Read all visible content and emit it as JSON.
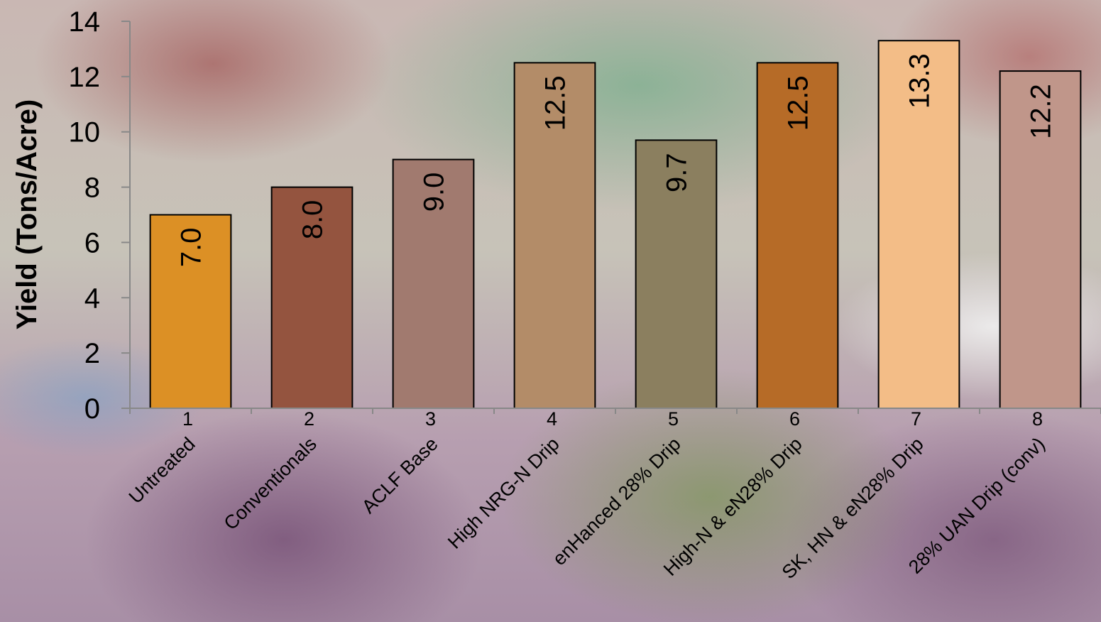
{
  "chart_data": {
    "type": "bar",
    "title": "",
    "xlabel": "",
    "ylabel": "Yield (Tons/Acre)",
    "ylim": [
      0,
      14
    ],
    "yticks": [
      0,
      2,
      4,
      6,
      8,
      10,
      12,
      14
    ],
    "grid": false,
    "categories": [
      "1",
      "2",
      "3",
      "4",
      "5",
      "6",
      "7",
      "8"
    ],
    "category_labels": [
      "Untreated",
      "Conventionals",
      "ACLF Base",
      "High NRG-N Drip",
      "enHanced 28% Drip",
      "High-N & eN28% Drip",
      "SK, HN & eN28% Drip",
      "28% UAN Drip (conv)"
    ],
    "values": [
      7.0,
      8.0,
      9.0,
      12.5,
      9.7,
      12.5,
      13.3,
      12.2
    ],
    "value_labels": [
      "7.0",
      "8.0",
      "9.0",
      "12.5",
      "9.7",
      "12.5",
      "13.3",
      "12.2"
    ],
    "colors": [
      "#dc9025",
      "#94543f",
      "#a17a6f",
      "#b38c68",
      "#8b7f5f",
      "#b66b27",
      "#f3bd87",
      "#c0968a"
    ],
    "background": "photo of bell peppers at a market"
  }
}
